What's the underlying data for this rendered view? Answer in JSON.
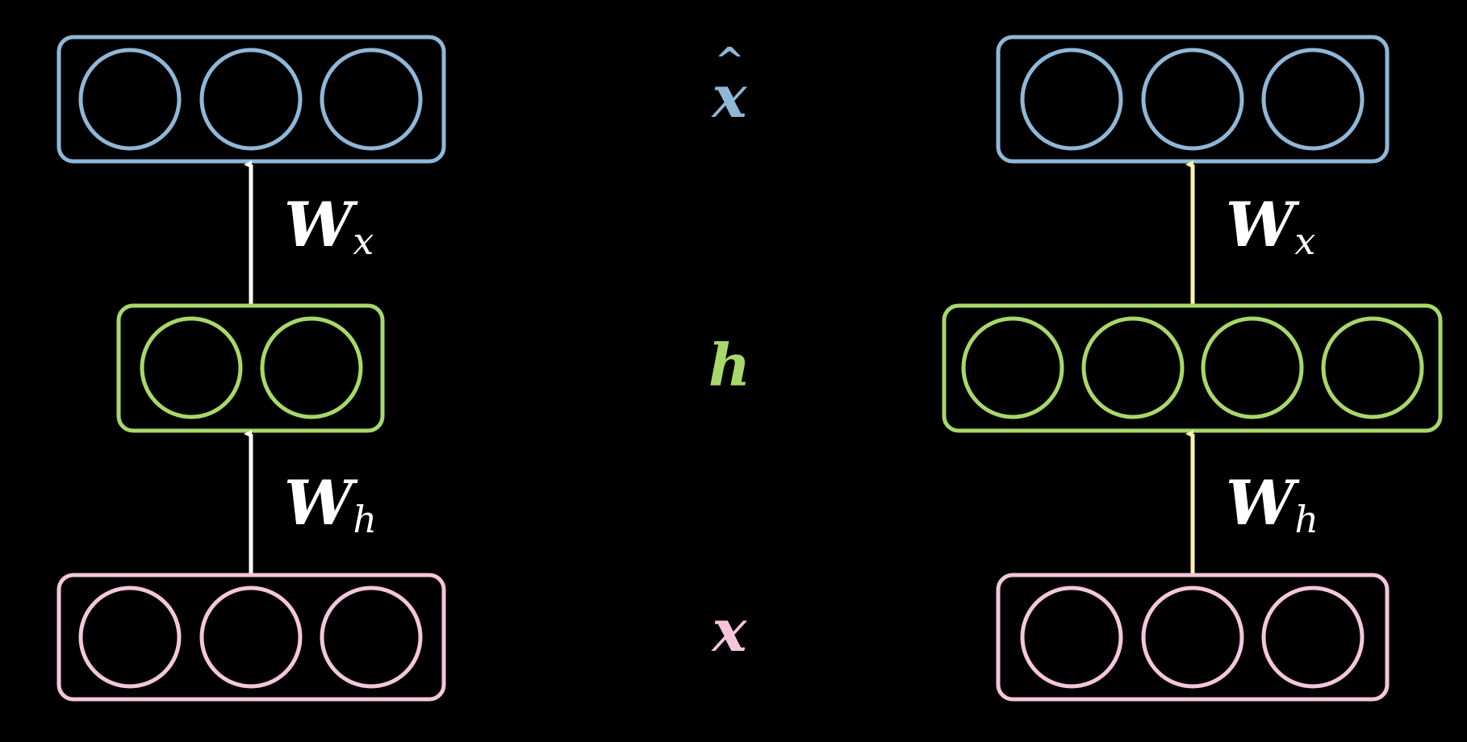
{
  "colors": {
    "background": "#000000",
    "output_layer": "#8fb8d8",
    "hidden_layer": "#a8d86a",
    "input_layer": "#f4c6dc",
    "left_arrows": "#ffffff",
    "right_arrows": "#f8f6a8"
  },
  "labels": {
    "x_hat": "x",
    "x_hat_accent": "^",
    "h": "h",
    "x": "x"
  },
  "left_network": {
    "output_units": 3,
    "hidden_units": 2,
    "input_units": 3,
    "weight_top": {
      "main": "W",
      "sub": "x"
    },
    "weight_bottom": {
      "main": "W",
      "sub": "h"
    }
  },
  "right_network": {
    "output_units": 3,
    "hidden_units": 4,
    "input_units": 3,
    "weight_top": {
      "main": "W",
      "sub": "x"
    },
    "weight_bottom": {
      "main": "W",
      "sub": "h"
    }
  }
}
